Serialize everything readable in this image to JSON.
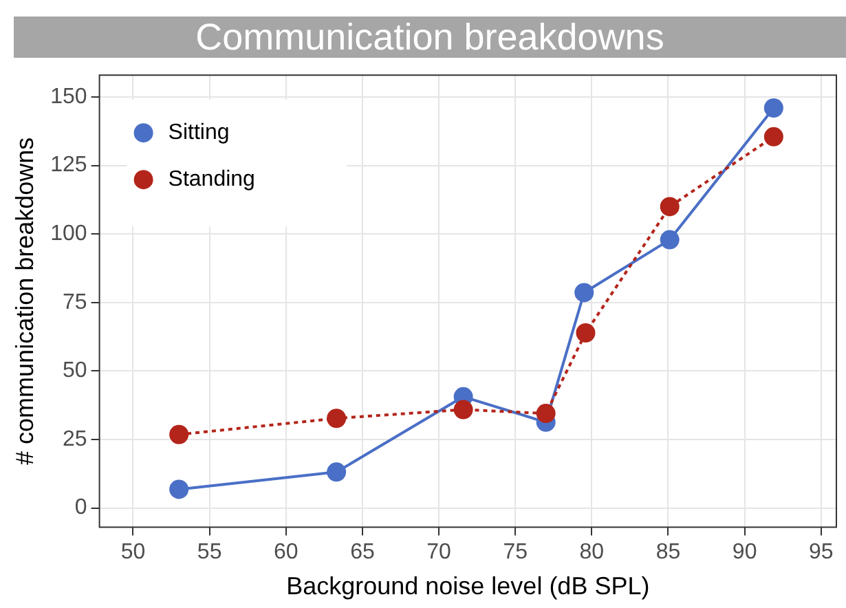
{
  "chart_data": {
    "type": "line",
    "title": "Communication breakdowns",
    "xlabel": "Background noise level (dB SPL)",
    "ylabel": "# communication breakdowns",
    "xlim": [
      47.8,
      96
    ],
    "xticks": [
      50,
      55,
      60,
      65,
      70,
      75,
      80,
      85,
      90,
      95
    ],
    "ylim": [
      -7,
      158
    ],
    "yticks": [
      0,
      25,
      50,
      75,
      100,
      125,
      150
    ],
    "grid": true,
    "legend": "top left",
    "marker": "circle",
    "series": [
      {
        "name": "Sitting",
        "color": "#4a6fc6",
        "line_style": "solid",
        "x": [
          53.0,
          63.3,
          71.6,
          77.0,
          79.5,
          85.1,
          91.9
        ],
        "values": [
          6.8,
          13.1,
          40.6,
          31.3,
          78.6,
          97.9,
          146.0
        ]
      },
      {
        "name": "Standing",
        "color": "#b3251a",
        "line_style": "dotted",
        "x": [
          53.0,
          63.3,
          71.6,
          77.0,
          79.6,
          85.1,
          91.9
        ],
        "values": [
          26.8,
          32.7,
          35.9,
          34.5,
          63.9,
          110,
          135.5
        ]
      }
    ]
  }
}
